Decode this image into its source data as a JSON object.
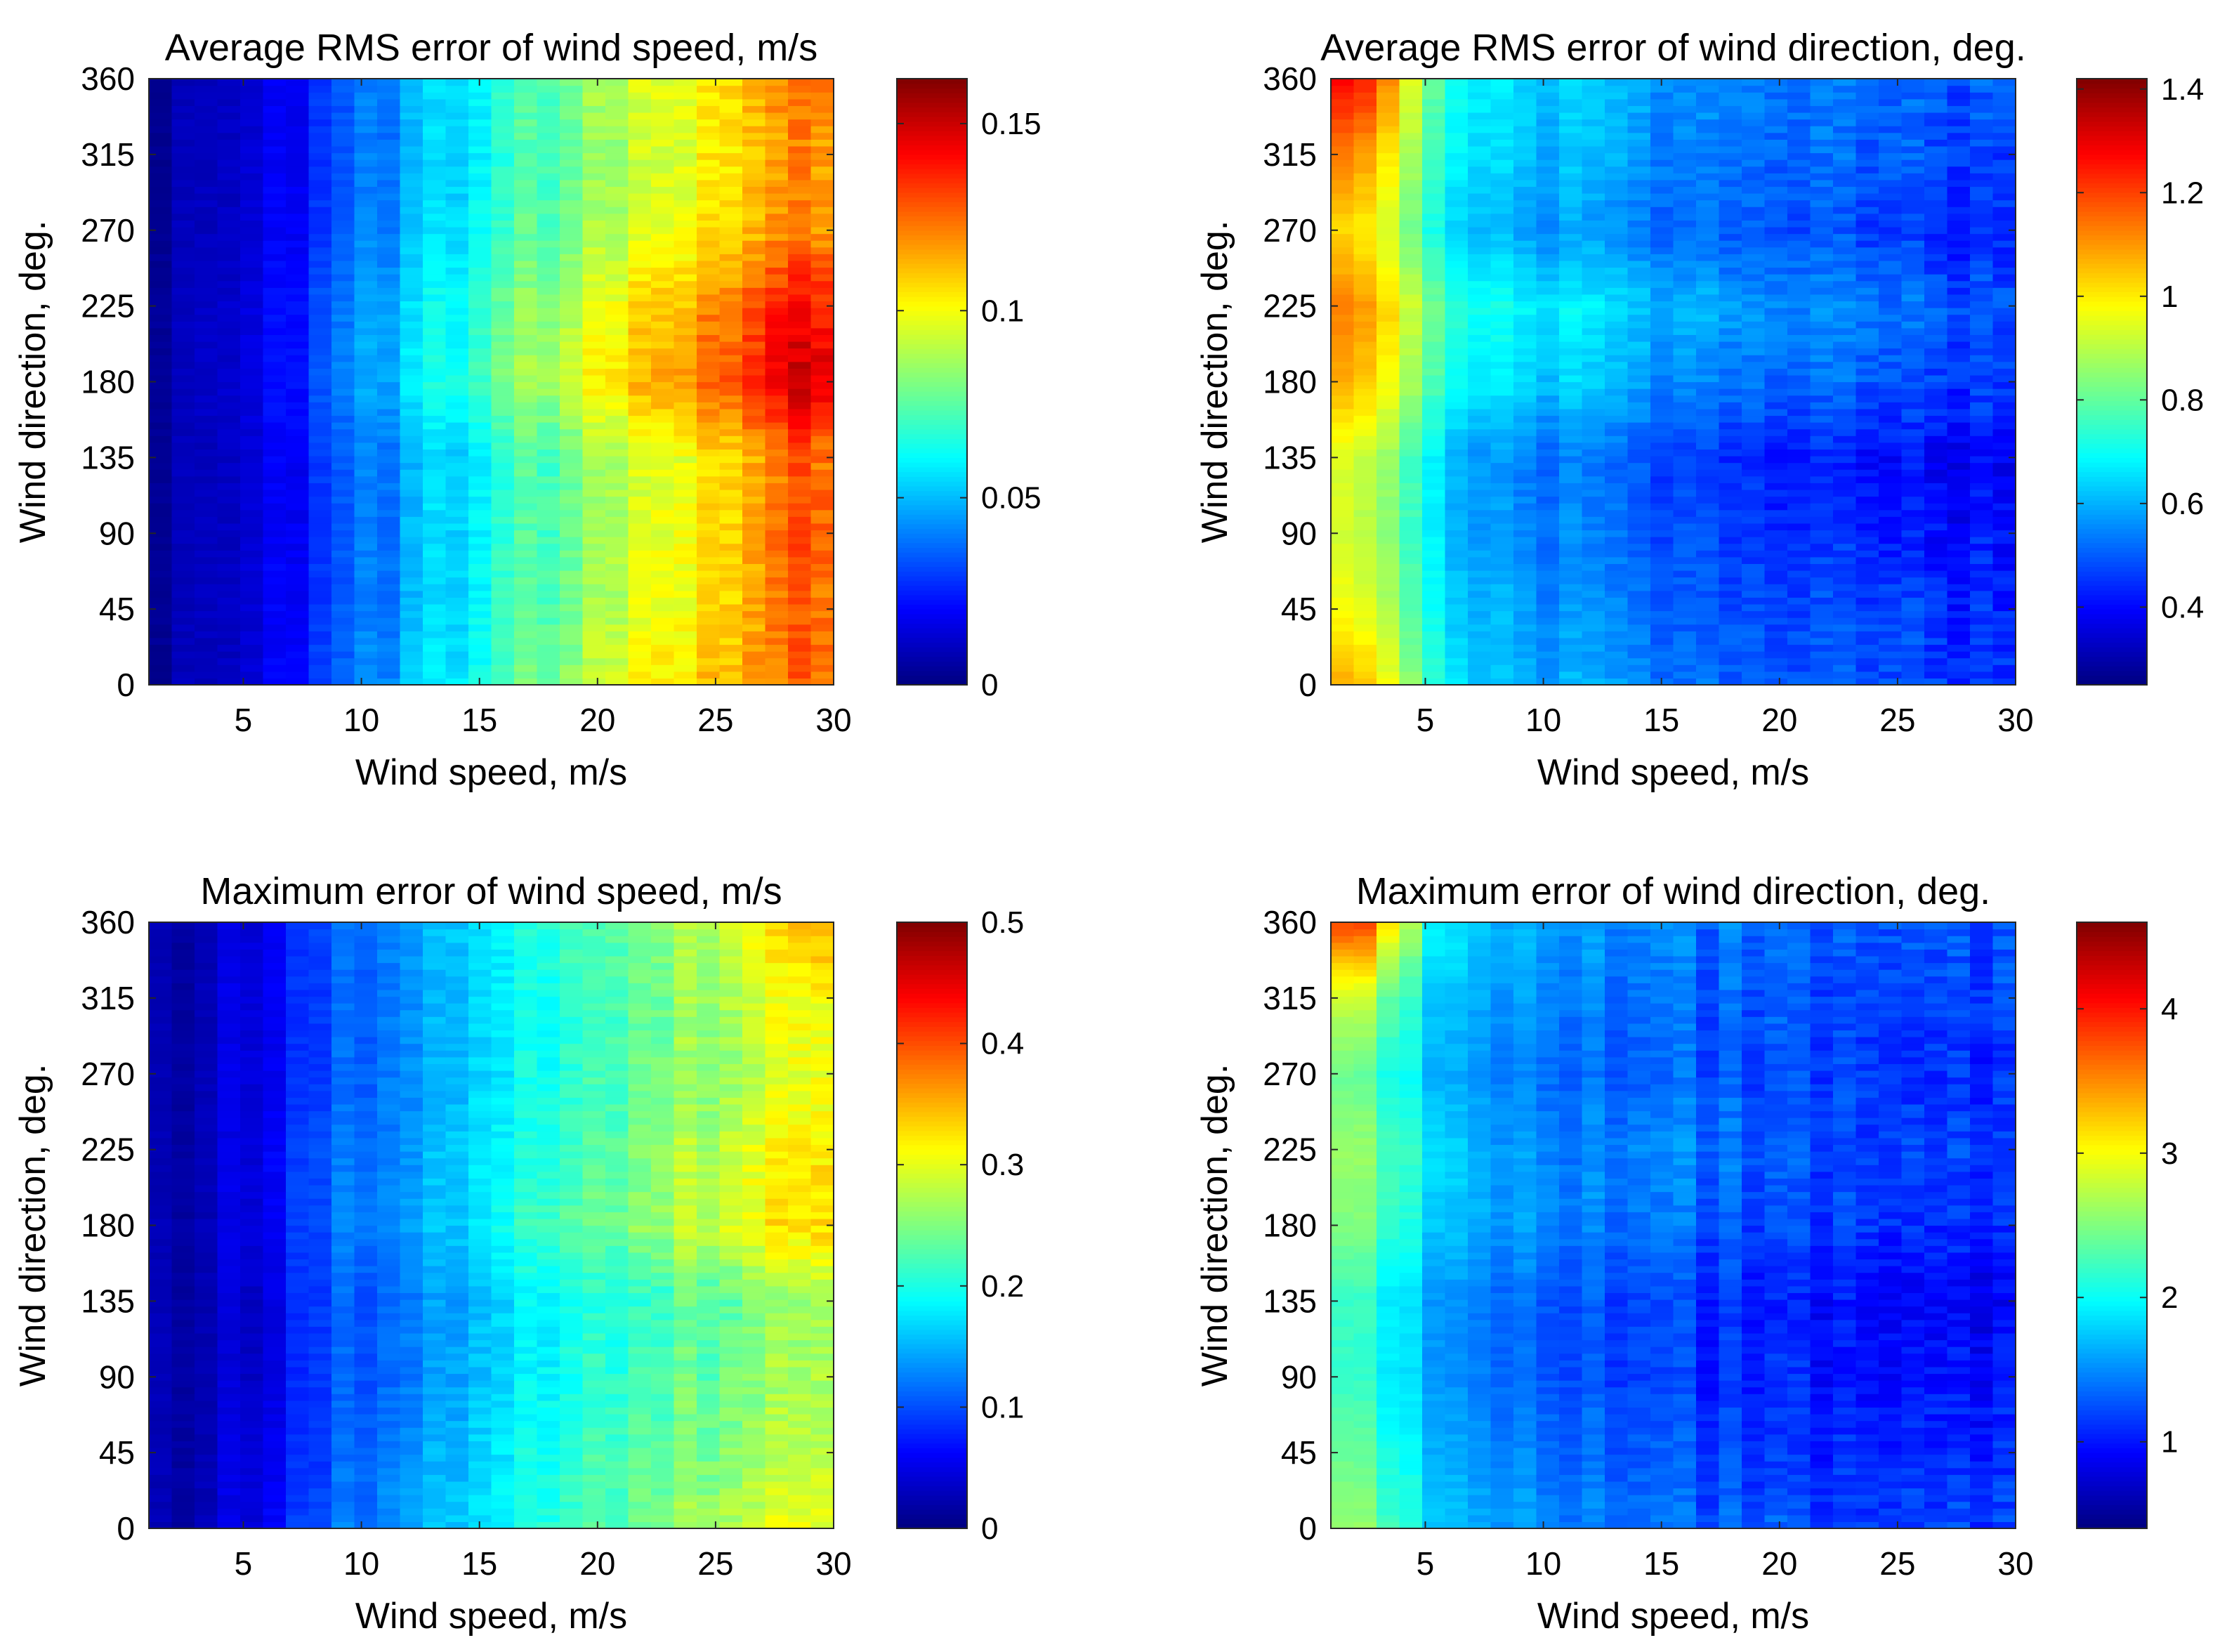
{
  "figure": {
    "layout": "2x2 grid of heatmaps with colorbars",
    "colormap": "jet"
  },
  "chart_data": [
    {
      "type": "heatmap",
      "title": "Average RMS error of wind speed, m/s",
      "xlabel": "Wind speed, m/s",
      "ylabel": "Wind direction, deg.",
      "xlim": [
        1,
        30
      ],
      "ylim": [
        0,
        360
      ],
      "xticks": [
        5,
        10,
        15,
        20,
        25,
        30
      ],
      "yticks": [
        0,
        45,
        90,
        135,
        180,
        225,
        270,
        315,
        360
      ],
      "colorbar": {
        "range": [
          0,
          0.162
        ],
        "ticks": [
          0,
          0.05,
          0.1,
          0.15
        ],
        "tick_labels": [
          "0",
          "0.05",
          "0.1",
          "0.15"
        ]
      },
      "x": [
        2,
        5,
        8,
        11,
        14,
        17,
        20,
        23,
        26,
        29
      ],
      "y": [
        0,
        45,
        90,
        135,
        180,
        225,
        270,
        315,
        360
      ],
      "values": [
        [
          0.005,
          0.012,
          0.03,
          0.045,
          0.06,
          0.075,
          0.09,
          0.105,
          0.115,
          0.125
        ],
        [
          0.005,
          0.012,
          0.028,
          0.042,
          0.057,
          0.072,
          0.085,
          0.1,
          0.112,
          0.125
        ],
        [
          0.005,
          0.012,
          0.028,
          0.042,
          0.057,
          0.07,
          0.084,
          0.098,
          0.112,
          0.128
        ],
        [
          0.005,
          0.012,
          0.028,
          0.042,
          0.056,
          0.07,
          0.083,
          0.097,
          0.11,
          0.125
        ],
        [
          0.006,
          0.014,
          0.033,
          0.05,
          0.066,
          0.083,
          0.1,
          0.116,
          0.132,
          0.148
        ],
        [
          0.006,
          0.014,
          0.032,
          0.049,
          0.064,
          0.08,
          0.095,
          0.11,
          0.125,
          0.14
        ],
        [
          0.005,
          0.012,
          0.028,
          0.043,
          0.058,
          0.072,
          0.085,
          0.098,
          0.11,
          0.12
        ],
        [
          0.005,
          0.012,
          0.027,
          0.042,
          0.056,
          0.07,
          0.082,
          0.095,
          0.108,
          0.118
        ],
        [
          0.005,
          0.012,
          0.028,
          0.042,
          0.057,
          0.071,
          0.084,
          0.097,
          0.11,
          0.122
        ]
      ]
    },
    {
      "type": "heatmap",
      "title": "Average RMS error of wind direction, deg.",
      "xlabel": "Wind speed, m/s",
      "ylabel": "Wind direction, deg.",
      "xlim": [
        1,
        30
      ],
      "ylim": [
        0,
        360
      ],
      "xticks": [
        5,
        10,
        15,
        20,
        25,
        30
      ],
      "yticks": [
        0,
        45,
        90,
        135,
        180,
        225,
        270,
        315,
        360
      ],
      "colorbar": {
        "range": [
          0.25,
          1.42
        ],
        "ticks": [
          0.4,
          0.6,
          0.8,
          1,
          1.2,
          1.4
        ],
        "tick_labels": [
          "0.4",
          "0.6",
          "0.8",
          "1",
          "1.2",
          "1.4"
        ]
      },
      "x": [
        2,
        5,
        8,
        11,
        14,
        17,
        20,
        23,
        26,
        29
      ],
      "y": [
        0,
        45,
        90,
        135,
        180,
        225,
        270,
        315,
        360
      ],
      "values": [
        [
          1.05,
          0.72,
          0.62,
          0.58,
          0.55,
          0.52,
          0.5,
          0.48,
          0.48,
          0.47
        ],
        [
          0.95,
          0.68,
          0.6,
          0.55,
          0.52,
          0.5,
          0.48,
          0.47,
          0.46,
          0.45
        ],
        [
          0.9,
          0.66,
          0.57,
          0.53,
          0.5,
          0.48,
          0.45,
          0.43,
          0.42,
          0.42
        ],
        [
          0.92,
          0.66,
          0.56,
          0.52,
          0.49,
          0.46,
          0.43,
          0.41,
          0.4,
          0.4
        ],
        [
          1.05,
          0.76,
          0.66,
          0.62,
          0.58,
          0.55,
          0.52,
          0.5,
          0.48,
          0.47
        ],
        [
          1.1,
          0.8,
          0.7,
          0.66,
          0.62,
          0.6,
          0.56,
          0.54,
          0.52,
          0.5
        ],
        [
          1.0,
          0.7,
          0.6,
          0.56,
          0.53,
          0.51,
          0.49,
          0.47,
          0.45,
          0.45
        ],
        [
          1.1,
          0.74,
          0.64,
          0.6,
          0.57,
          0.54,
          0.52,
          0.5,
          0.49,
          0.48
        ],
        [
          1.25,
          0.78,
          0.66,
          0.62,
          0.59,
          0.56,
          0.54,
          0.52,
          0.51,
          0.5
        ]
      ]
    },
    {
      "type": "heatmap",
      "title": "Maximum error of wind speed, m/s",
      "xlabel": "Wind speed, m/s",
      "ylabel": "Wind direction, deg.",
      "xlim": [
        1,
        30
      ],
      "ylim": [
        0,
        360
      ],
      "xticks": [
        5,
        10,
        15,
        20,
        25,
        30
      ],
      "yticks": [
        0,
        45,
        90,
        135,
        180,
        225,
        270,
        315,
        360
      ],
      "colorbar": {
        "range": [
          0,
          0.5
        ],
        "ticks": [
          0,
          0.1,
          0.2,
          0.3,
          0.4,
          0.5
        ],
        "tick_labels": [
          "0",
          "0.1",
          "0.2",
          "0.3",
          "0.4",
          "0.5"
        ]
      },
      "x": [
        2,
        5,
        8,
        11,
        14,
        17,
        20,
        23,
        26,
        29
      ],
      "y": [
        0,
        45,
        90,
        135,
        180,
        225,
        270,
        315,
        360
      ],
      "values": [
        [
          0.02,
          0.05,
          0.1,
          0.14,
          0.17,
          0.2,
          0.23,
          0.26,
          0.28,
          0.3
        ],
        [
          0.02,
          0.05,
          0.09,
          0.13,
          0.16,
          0.19,
          0.22,
          0.24,
          0.26,
          0.28
        ],
        [
          0.02,
          0.04,
          0.09,
          0.12,
          0.15,
          0.18,
          0.21,
          0.23,
          0.25,
          0.27
        ],
        [
          0.02,
          0.04,
          0.09,
          0.12,
          0.15,
          0.18,
          0.2,
          0.22,
          0.24,
          0.26
        ],
        [
          0.02,
          0.05,
          0.1,
          0.14,
          0.17,
          0.21,
          0.24,
          0.27,
          0.3,
          0.33
        ],
        [
          0.02,
          0.05,
          0.1,
          0.13,
          0.17,
          0.2,
          0.23,
          0.26,
          0.29,
          0.32
        ],
        [
          0.02,
          0.05,
          0.09,
          0.13,
          0.16,
          0.19,
          0.22,
          0.25,
          0.27,
          0.3
        ],
        [
          0.02,
          0.05,
          0.09,
          0.13,
          0.16,
          0.19,
          0.22,
          0.25,
          0.28,
          0.31
        ],
        [
          0.02,
          0.05,
          0.1,
          0.13,
          0.17,
          0.2,
          0.23,
          0.26,
          0.3,
          0.35
        ]
      ]
    },
    {
      "type": "heatmap",
      "title": "Maximum error of wind direction, deg.",
      "xlabel": "Wind speed, m/s",
      "ylabel": "Wind direction, deg.",
      "xlim": [
        1,
        30
      ],
      "ylim": [
        0,
        360
      ],
      "xticks": [
        5,
        10,
        15,
        20,
        25,
        30
      ],
      "yticks": [
        0,
        45,
        90,
        135,
        180,
        225,
        270,
        315,
        360
      ],
      "colorbar": {
        "range": [
          0.4,
          4.6
        ],
        "ticks": [
          1,
          2,
          3,
          4
        ],
        "tick_labels": [
          "1",
          "2",
          "3",
          "4"
        ]
      },
      "x": [
        2,
        5,
        8,
        11,
        14,
        17,
        20,
        23,
        26,
        29
      ],
      "y": [
        0,
        45,
        90,
        135,
        180,
        225,
        270,
        315,
        360
      ],
      "values": [
        [
          2.6,
          1.8,
          1.6,
          1.5,
          1.4,
          1.3,
          1.3,
          1.2,
          1.2,
          1.2
        ],
        [
          2.4,
          1.7,
          1.5,
          1.4,
          1.3,
          1.2,
          1.1,
          1.1,
          1.1,
          1.1
        ],
        [
          2.2,
          1.6,
          1.4,
          1.3,
          1.2,
          1.1,
          1.1,
          1.0,
          1.0,
          1.0
        ],
        [
          2.2,
          1.6,
          1.4,
          1.3,
          1.2,
          1.1,
          1.0,
          1.0,
          0.9,
          0.9
        ],
        [
          2.5,
          1.8,
          1.6,
          1.5,
          1.4,
          1.3,
          1.2,
          1.2,
          1.1,
          1.1
        ],
        [
          2.6,
          1.9,
          1.6,
          1.5,
          1.5,
          1.4,
          1.3,
          1.2,
          1.2,
          1.2
        ],
        [
          2.4,
          1.7,
          1.5,
          1.4,
          1.3,
          1.3,
          1.2,
          1.2,
          1.1,
          1.1
        ],
        [
          2.8,
          1.8,
          1.6,
          1.5,
          1.4,
          1.3,
          1.3,
          1.2,
          1.2,
          1.2
        ],
        [
          3.8,
          2.0,
          1.7,
          1.6,
          1.5,
          1.4,
          1.4,
          1.3,
          1.3,
          1.3
        ]
      ]
    }
  ]
}
